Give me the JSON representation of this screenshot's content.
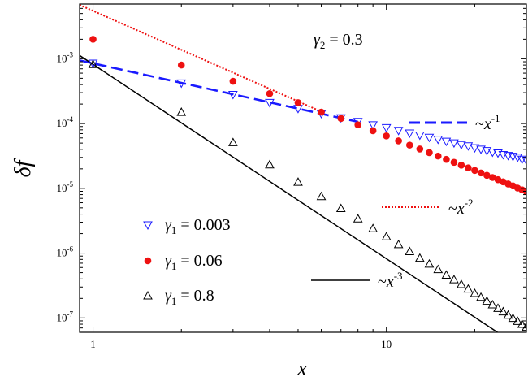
{
  "chart_data": {
    "type": "scatter",
    "xlabel": "x",
    "ylabel": "δf",
    "xscale": "log",
    "yscale": "log",
    "xlim": [
      0.9,
      30
    ],
    "ylim": [
      6e-08,
      0.007
    ],
    "x_ticks": [
      {
        "value": 1,
        "label": "1"
      },
      {
        "value": 10,
        "label": "10"
      }
    ],
    "y_ticks": [
      {
        "value": 1e-07,
        "base": "10",
        "exp": "-7"
      },
      {
        "value": 1e-06,
        "base": "10",
        "exp": "-6"
      },
      {
        "value": 1e-05,
        "base": "10",
        "exp": "-5"
      },
      {
        "value": 0.0001,
        "base": "10",
        "exp": "-4"
      },
      {
        "value": 0.001,
        "base": "10",
        "exp": "-3"
      }
    ],
    "annotation": {
      "gamma": "γ",
      "sub": "2",
      "rest": " = 0.3"
    },
    "series": [
      {
        "name": "γ1 = 0.003",
        "gamma": "γ",
        "sub": "1",
        "rest": " = 0.003",
        "marker": "triangle-down-open",
        "color": "#1a1aff",
        "x": [
          1,
          2,
          3,
          4,
          5,
          6,
          7,
          8,
          9,
          10,
          11,
          12,
          13,
          14,
          15,
          16,
          17,
          18,
          19,
          20,
          21,
          22,
          23,
          24,
          25,
          26,
          27,
          28,
          29,
          30
        ],
        "y": [
          0.00085,
          0.00042,
          0.00028,
          0.00021,
          0.00017,
          0.000142,
          0.000122,
          0.000107,
          9.5e-05,
          8.6e-05,
          7.8e-05,
          7.1e-05,
          6.6e-05,
          6.1e-05,
          5.7e-05,
          5.3e-05,
          5e-05,
          4.7e-05,
          4.5e-05,
          4.2e-05,
          4e-05,
          3.8e-05,
          3.6e-05,
          3.5e-05,
          3.3e-05,
          3.2e-05,
          3.1e-05,
          3e-05,
          2.8e-05,
          2.7e-05
        ]
      },
      {
        "name": "γ1 = 0.06",
        "gamma": "γ",
        "sub": "1",
        "rest": " = 0.06",
        "marker": "circle-filled",
        "color": "#ee1111",
        "x": [
          1,
          2,
          3,
          4,
          5,
          6,
          7,
          8,
          9,
          10,
          11,
          12,
          13,
          14,
          15,
          16,
          17,
          18,
          19,
          20,
          21,
          22,
          23,
          24,
          25,
          26,
          27,
          28,
          29,
          30
        ],
        "y": [
          0.002,
          0.0008,
          0.00045,
          0.00029,
          0.00021,
          0.00015,
          0.00012,
          9.55e-05,
          7.75e-05,
          6.45e-05,
          5.4e-05,
          4.65e-05,
          4.05e-05,
          3.55e-05,
          3.15e-05,
          2.8e-05,
          2.52e-05,
          2.28e-05,
          2.07e-05,
          1.89e-05,
          1.73e-05,
          1.59e-05,
          1.47e-05,
          1.36e-05,
          1.26e-05,
          1.17e-05,
          1.09e-05,
          1.01e-05,
          9.5e-06,
          8.9e-06
        ]
      },
      {
        "name": "γ1 = 0.8",
        "gamma": "γ",
        "sub": "1",
        "rest": " = 0.8",
        "marker": "triangle-up-open",
        "color": "#000000",
        "x": [
          1,
          2,
          3,
          4,
          5,
          6,
          7,
          8,
          9,
          10,
          11,
          12,
          13,
          14,
          15,
          16,
          17,
          18,
          19,
          20,
          21,
          22,
          23,
          24,
          25,
          26,
          27,
          28,
          29,
          30
        ],
        "y": [
          0.00082,
          0.00015,
          5.1e-05,
          2.32e-05,
          1.25e-05,
          7.5e-06,
          4.9e-06,
          3.4e-06,
          2.4e-06,
          1.8e-06,
          1.36e-06,
          1.06e-06,
          8.4e-07,
          6.8e-07,
          5.6e-07,
          4.6e-07,
          3.9e-07,
          3.3e-07,
          2.8e-07,
          2.4e-07,
          2.09e-07,
          1.82e-07,
          1.6e-07,
          1.41e-07,
          1.25e-07,
          1.11e-07,
          9.9e-08,
          8.9e-08,
          8e-08,
          7.2e-08
        ]
      }
    ],
    "fits": [
      {
        "label": "~x",
        "exp": "-1",
        "style": "dashed",
        "color": "#1a1aff",
        "coef": 0.00085,
        "power": -1,
        "x": [
          0.9,
          8
        ]
      },
      {
        "label": "~x",
        "exp": "-2",
        "style": "dotted",
        "color": "#ee1111",
        "coef": 0.0055,
        "power": -2,
        "x": [
          0.9,
          6
        ]
      },
      {
        "label": "~x",
        "exp": "-3",
        "style": "solid",
        "color": "#000000",
        "coef": 0.00082,
        "power": -3,
        "x": [
          0.9,
          30
        ]
      }
    ]
  }
}
